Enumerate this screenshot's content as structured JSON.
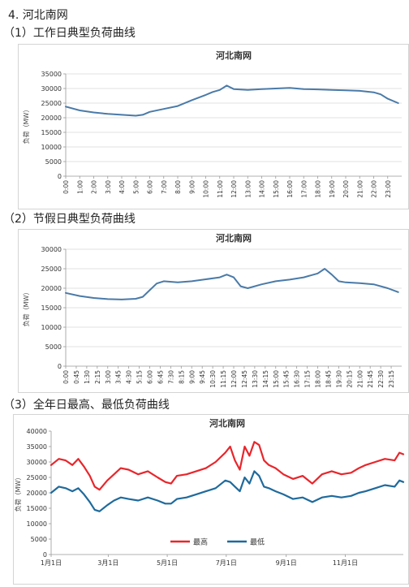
{
  "section": {
    "heading": "4. 河北南网"
  },
  "subheadings": [
    "（1）工作日典型负荷曲线",
    "（2）节假日典型负荷曲线",
    "（3）全年日最高、最低负荷曲线"
  ],
  "chart_data": [
    {
      "type": "line",
      "title": "河北南网",
      "xlabel": "",
      "ylabel": "负荷（MW）",
      "ylim": [
        0,
        35000
      ],
      "yticks": [
        0,
        5000,
        10000,
        15000,
        20000,
        25000,
        30000,
        35000
      ],
      "categories": [
        "0:00",
        "1:00",
        "2:00",
        "3:00",
        "4:00",
        "5:00",
        "6:00",
        "7:00",
        "8:00",
        "9:00",
        "10:00",
        "11:00",
        "12:00",
        "13:00",
        "14:00",
        "15:00",
        "16:00",
        "17:00",
        "18:00",
        "19:00",
        "20:00",
        "21:00",
        "22:00",
        "23:00"
      ],
      "grid": true,
      "colors": {
        "line": "#4a7aa8"
      },
      "series": [
        {
          "x": [
            0,
            1,
            2,
            3,
            4,
            5,
            5.5,
            6,
            7,
            8,
            9,
            10,
            10.5,
            11,
            11.5,
            12,
            13,
            14,
            15,
            16,
            17,
            18,
            19,
            20,
            21,
            22,
            22.5,
            23,
            23.75
          ],
          "values": [
            23800,
            22500,
            21800,
            21300,
            21000,
            20700,
            21000,
            22000,
            23000,
            24000,
            26000,
            27800,
            28800,
            29500,
            31000,
            29800,
            29500,
            29800,
            30000,
            30200,
            29800,
            29700,
            29500,
            29400,
            29200,
            28700,
            28000,
            26500,
            25000
          ]
        }
      ]
    },
    {
      "type": "line",
      "title": "河北南网",
      "xlabel": "",
      "ylabel": "负荷（MW）",
      "ylim": [
        0,
        30000
      ],
      "yticks": [
        0,
        5000,
        10000,
        15000,
        20000,
        25000,
        30000
      ],
      "categories": [
        "0:00",
        "0:45",
        "1:30",
        "2:15",
        "3:00",
        "3:45",
        "4:30",
        "5:15",
        "6:00",
        "6:45",
        "7:30",
        "8:15",
        "9:00",
        "9:45",
        "10:30",
        "11:15",
        "12:00",
        "12:45",
        "13:30",
        "14:15",
        "15:00",
        "15:45",
        "16:30",
        "17:15",
        "18:00",
        "18:45",
        "19:30",
        "20:15",
        "21:00",
        "21:45",
        "22:30",
        "23:15"
      ],
      "grid": true,
      "colors": {
        "line": "#4a7aa8"
      },
      "series": [
        {
          "x": [
            0,
            1,
            2,
            3,
            4,
            5,
            5.5,
            6,
            6.5,
            7,
            8,
            9,
            10,
            11,
            11.5,
            12,
            12.5,
            13,
            14,
            15,
            16,
            17,
            18,
            18.5,
            19,
            19.5,
            20,
            21,
            22,
            23,
            23.75
          ],
          "values": [
            18800,
            18000,
            17500,
            17200,
            17100,
            17300,
            17800,
            19500,
            21200,
            21800,
            21500,
            21800,
            22300,
            22800,
            23500,
            22800,
            20500,
            20000,
            21000,
            21800,
            22200,
            22800,
            23800,
            25000,
            23500,
            21800,
            21500,
            21300,
            21000,
            20000,
            19000
          ]
        }
      ]
    },
    {
      "type": "line",
      "title": "河北南网",
      "xlabel": "",
      "ylabel": "负荷（MW）",
      "ylim": [
        0,
        40000
      ],
      "yticks": [
        0,
        5000,
        10000,
        15000,
        20000,
        25000,
        30000,
        35000,
        40000
      ],
      "categories": [
        "1月1日",
        "3月1日",
        "5月1日",
        "7月1日",
        "9月1日",
        "11月1日"
      ],
      "category_days": [
        0,
        59,
        120,
        181,
        243,
        304
      ],
      "grid": false,
      "legend": "bottom-center",
      "colors": {
        "最高": "#e8262b",
        "最低": "#1f6a9c"
      },
      "series": [
        {
          "name": "最高",
          "x": [
            0,
            8,
            15,
            22,
            28,
            34,
            40,
            45,
            50,
            58,
            65,
            72,
            80,
            90,
            100,
            110,
            118,
            124,
            130,
            140,
            150,
            160,
            170,
            180,
            185,
            190,
            195,
            200,
            205,
            210,
            215,
            220,
            225,
            232,
            240,
            250,
            260,
            270,
            280,
            290,
            300,
            310,
            318,
            325,
            335,
            345,
            355,
            360,
            364
          ],
          "values": [
            29000,
            31000,
            30500,
            29000,
            31000,
            28500,
            25500,
            22000,
            21000,
            24000,
            26000,
            28000,
            27500,
            26000,
            27000,
            25000,
            23500,
            23000,
            25500,
            26000,
            27000,
            28000,
            30000,
            33000,
            35000,
            30500,
            27500,
            35000,
            32000,
            36500,
            35500,
            30500,
            29000,
            28000,
            26000,
            24500,
            25500,
            23000,
            26000,
            27000,
            26000,
            26500,
            28000,
            29000,
            30000,
            31000,
            30500,
            33000,
            32500
          ]
        },
        {
          "name": "最低",
          "x": [
            0,
            8,
            15,
            22,
            28,
            34,
            40,
            45,
            50,
            58,
            65,
            72,
            80,
            90,
            100,
            110,
            118,
            124,
            130,
            140,
            150,
            160,
            170,
            180,
            185,
            190,
            195,
            200,
            205,
            210,
            215,
            220,
            225,
            232,
            240,
            250,
            260,
            270,
            280,
            290,
            300,
            310,
            318,
            325,
            335,
            345,
            355,
            360,
            364
          ],
          "values": [
            20000,
            22000,
            21500,
            20500,
            21500,
            19500,
            17000,
            14500,
            14000,
            16000,
            17500,
            18500,
            18000,
            17500,
            18500,
            17500,
            16500,
            16500,
            18000,
            18500,
            19500,
            20500,
            21500,
            24000,
            23500,
            22000,
            20500,
            25000,
            23000,
            27000,
            25500,
            22000,
            21500,
            20500,
            19500,
            18000,
            18500,
            17000,
            18500,
            19000,
            18500,
            19000,
            20000,
            20500,
            21500,
            22500,
            22000,
            24000,
            23500
          ]
        }
      ]
    }
  ]
}
